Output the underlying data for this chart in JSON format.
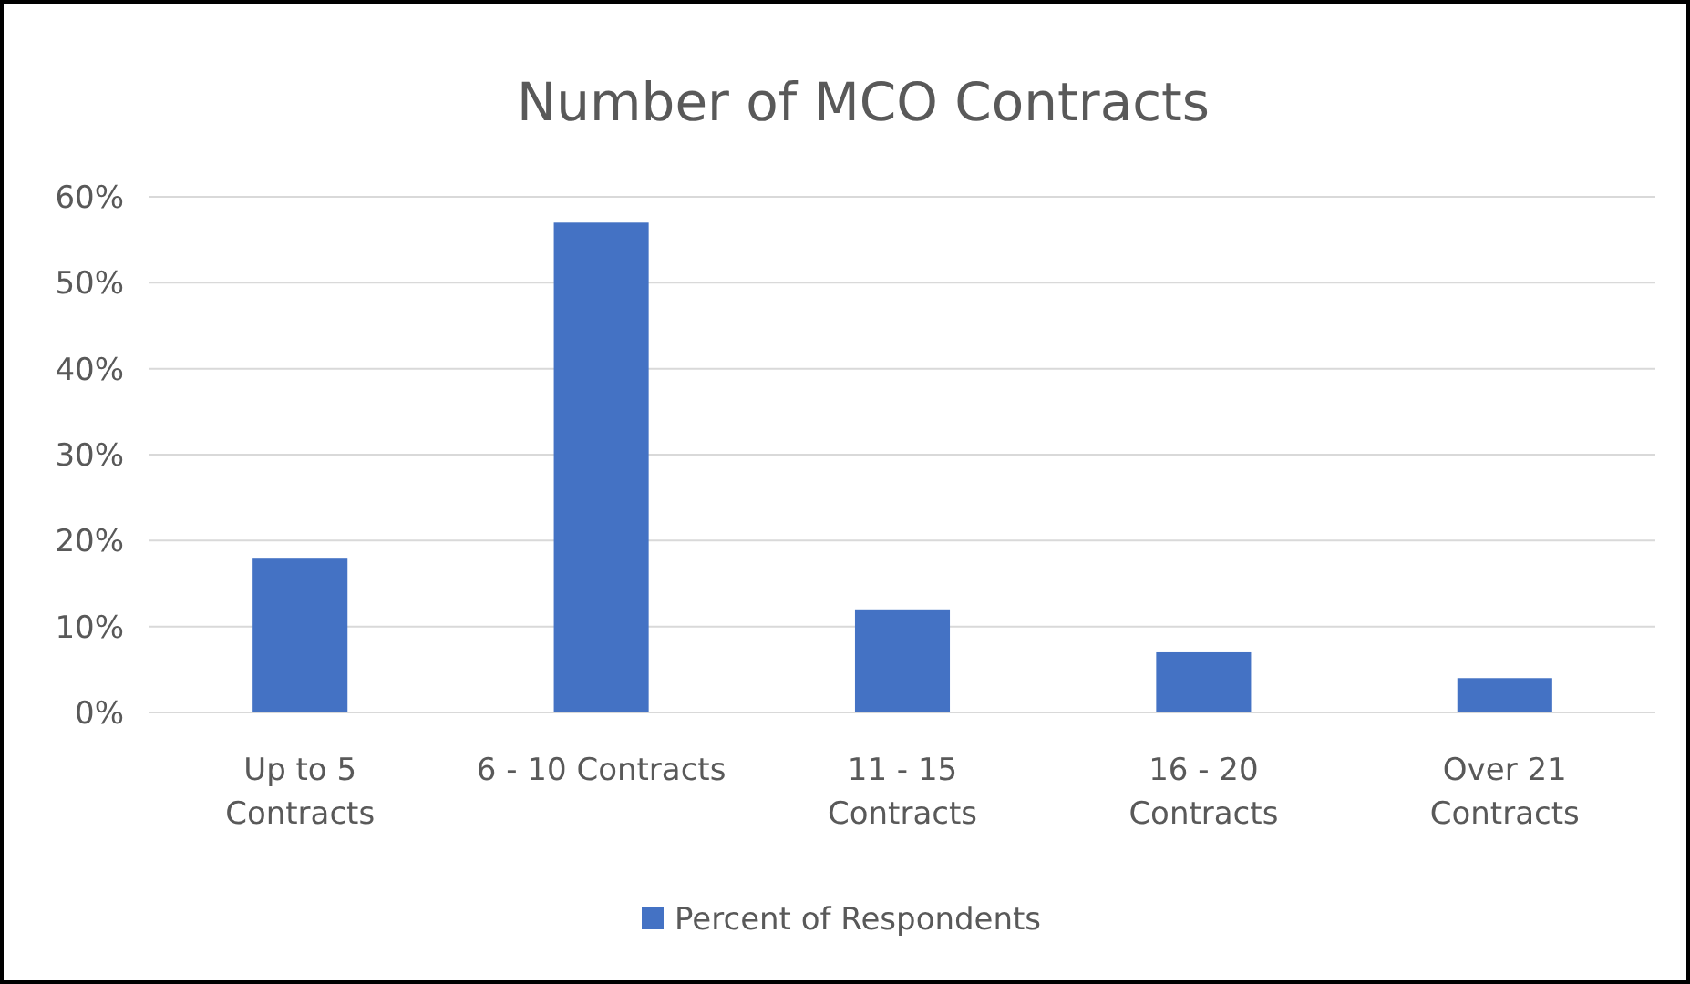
{
  "chart_data": {
    "type": "bar",
    "title": "Number of MCO Contracts",
    "categories": [
      "Up to 5 Contracts",
      "6 - 10 Contracts",
      "11 - 15 Contracts",
      "16 - 20 Contracts",
      "Over 21 Contracts"
    ],
    "series": [
      {
        "name": "Percent of Respondents",
        "color": "#4472c4",
        "values": [
          18,
          57,
          12,
          7,
          4
        ]
      }
    ],
    "ylim": [
      0,
      60
    ],
    "yticks": [
      {
        "value": 0,
        "label": "0%"
      },
      {
        "value": 10,
        "label": "10%"
      },
      {
        "value": 20,
        "label": "20%"
      },
      {
        "value": 30,
        "label": "30%"
      },
      {
        "value": 40,
        "label": "40%"
      },
      {
        "value": 50,
        "label": "50%"
      },
      {
        "value": 60,
        "label": "60%"
      }
    ],
    "grid": "y",
    "legend": "bottom"
  }
}
